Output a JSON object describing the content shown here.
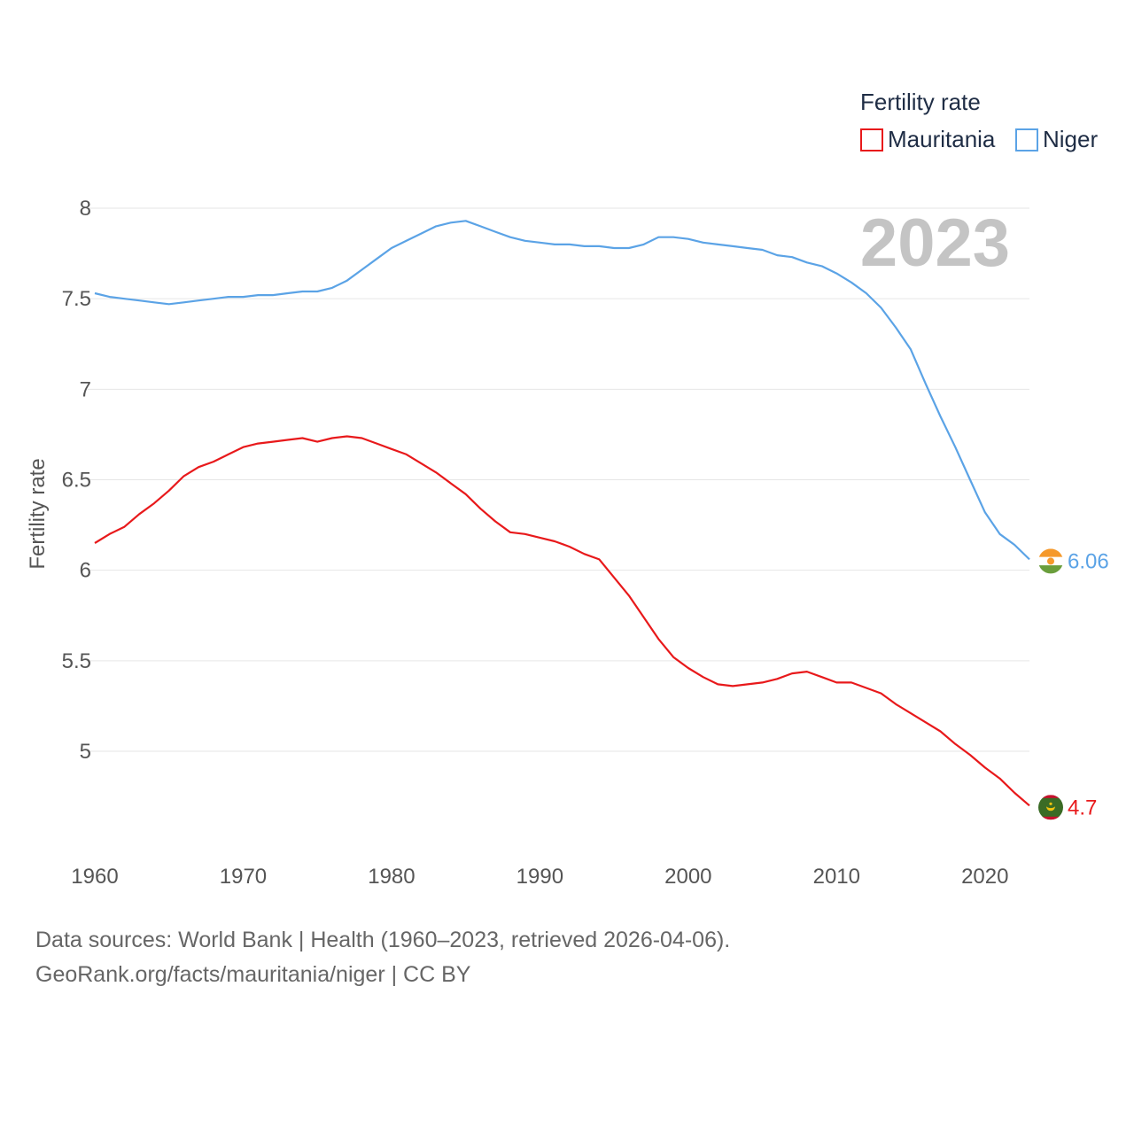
{
  "chart_data": {
    "type": "line",
    "ylabel": "Fertility rate",
    "xlabel": "",
    "legend_title": "Fertility rate",
    "legend_position": "top-right",
    "year_label": "2023",
    "xlim": [
      1960,
      2023
    ],
    "ylim": [
      4.55,
      8.08
    ],
    "x_ticks": [
      1960,
      1970,
      1980,
      1990,
      2000,
      2010,
      2020
    ],
    "x_tick_labels": [
      "1960",
      "1970",
      "1980",
      "1990",
      "2000",
      "2010",
      "2020"
    ],
    "y_ticks": [
      5,
      5.5,
      6,
      6.5,
      7,
      7.5,
      8
    ],
    "y_tick_labels": [
      "5",
      "5.5",
      "6",
      "6.5",
      "7",
      "7.5",
      "8"
    ],
    "x": [
      1960,
      1961,
      1962,
      1963,
      1964,
      1965,
      1966,
      1967,
      1968,
      1969,
      1970,
      1971,
      1972,
      1973,
      1974,
      1975,
      1976,
      1977,
      1978,
      1979,
      1980,
      1981,
      1982,
      1983,
      1984,
      1985,
      1986,
      1987,
      1988,
      1989,
      1990,
      1991,
      1992,
      1993,
      1994,
      1995,
      1996,
      1997,
      1998,
      1999,
      2000,
      2001,
      2002,
      2003,
      2004,
      2005,
      2006,
      2007,
      2008,
      2009,
      2010,
      2011,
      2012,
      2013,
      2014,
      2015,
      2016,
      2017,
      2018,
      2019,
      2020,
      2021,
      2022,
      2023
    ],
    "series": [
      {
        "name": "Mauritania",
        "color": "#e8191b",
        "end_label": "4.7",
        "values": [
          6.15,
          6.2,
          6.24,
          6.31,
          6.37,
          6.44,
          6.52,
          6.57,
          6.6,
          6.64,
          6.68,
          6.7,
          6.71,
          6.72,
          6.73,
          6.71,
          6.73,
          6.74,
          6.73,
          6.7,
          6.67,
          6.64,
          6.59,
          6.54,
          6.48,
          6.42,
          6.34,
          6.27,
          6.21,
          6.2,
          6.18,
          6.16,
          6.13,
          6.09,
          6.06,
          5.96,
          5.86,
          5.74,
          5.62,
          5.52,
          5.46,
          5.41,
          5.37,
          5.36,
          5.37,
          5.38,
          5.4,
          5.43,
          5.44,
          5.41,
          5.38,
          5.38,
          5.35,
          5.32,
          5.26,
          5.21,
          5.16,
          5.11,
          5.04,
          4.98,
          4.91,
          4.85,
          4.77,
          4.7
        ]
      },
      {
        "name": "Niger",
        "color": "#5ba3e6",
        "end_label": "6.06",
        "values": [
          7.53,
          7.51,
          7.5,
          7.49,
          7.48,
          7.47,
          7.48,
          7.49,
          7.5,
          7.51,
          7.51,
          7.52,
          7.52,
          7.53,
          7.54,
          7.54,
          7.56,
          7.6,
          7.66,
          7.72,
          7.78,
          7.82,
          7.86,
          7.9,
          7.92,
          7.93,
          7.9,
          7.87,
          7.84,
          7.82,
          7.81,
          7.8,
          7.8,
          7.79,
          7.79,
          7.78,
          7.78,
          7.8,
          7.84,
          7.84,
          7.83,
          7.81,
          7.8,
          7.79,
          7.78,
          7.77,
          7.74,
          7.73,
          7.7,
          7.68,
          7.64,
          7.59,
          7.53,
          7.45,
          7.34,
          7.22,
          7.03,
          6.85,
          6.68,
          6.5,
          6.32,
          6.2,
          6.14,
          6.06
        ]
      }
    ]
  },
  "footer": {
    "line1": "Data sources: World Bank | Health (1960–2023, retrieved 2026-04-06).",
    "line2": "GeoRank.org/facts/mauritania/niger | CC BY"
  }
}
